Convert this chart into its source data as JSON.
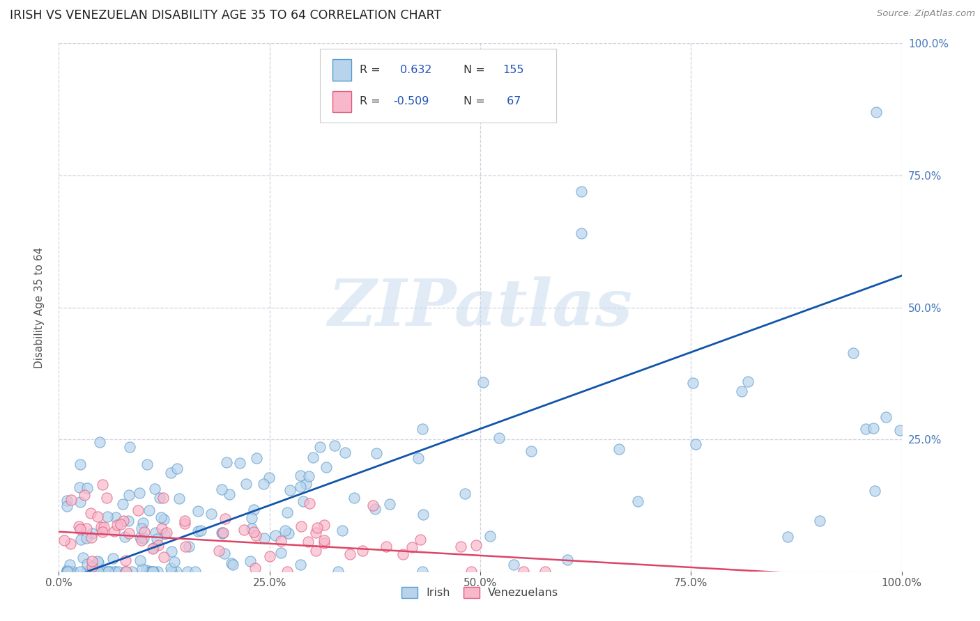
{
  "title": "IRISH VS VENEZUELAN DISABILITY AGE 35 TO 64 CORRELATION CHART",
  "source": "Source: ZipAtlas.com",
  "ylabel": "Disability Age 35 to 64",
  "xtick_positions": [
    0.0,
    0.25,
    0.5,
    0.75,
    1.0
  ],
  "xtick_labels": [
    "0.0%",
    "25.0%",
    "50.0%",
    "75.0%",
    "100.0%"
  ],
  "ytick_positions": [
    0.0,
    0.25,
    0.5,
    0.75,
    1.0
  ],
  "ytick_labels": [
    "",
    "25.0%",
    "50.0%",
    "75.0%",
    "100.0%"
  ],
  "legend_r_irish": "0.632",
  "legend_n_irish": "155",
  "legend_r_venezuelan": "-0.509",
  "legend_n_venezuelan": "67",
  "irish_face_color": "#b8d4ec",
  "irish_edge_color": "#5599cc",
  "venezuelan_face_color": "#f8b8cc",
  "venezuelan_edge_color": "#e05878",
  "irish_line_color": "#1155aa",
  "venezuelan_line_color": "#dd4466",
  "background_color": "#ffffff",
  "grid_color": "#ccccdd",
  "watermark_text": "ZIPatlas",
  "watermark_color": "#c5d8ee",
  "irish_line_x": [
    0.0,
    1.0
  ],
  "irish_line_y": [
    -0.02,
    0.56
  ],
  "venezuelan_line_x": [
    0.0,
    1.0
  ],
  "venezuelan_line_y": [
    0.075,
    -0.015
  ]
}
